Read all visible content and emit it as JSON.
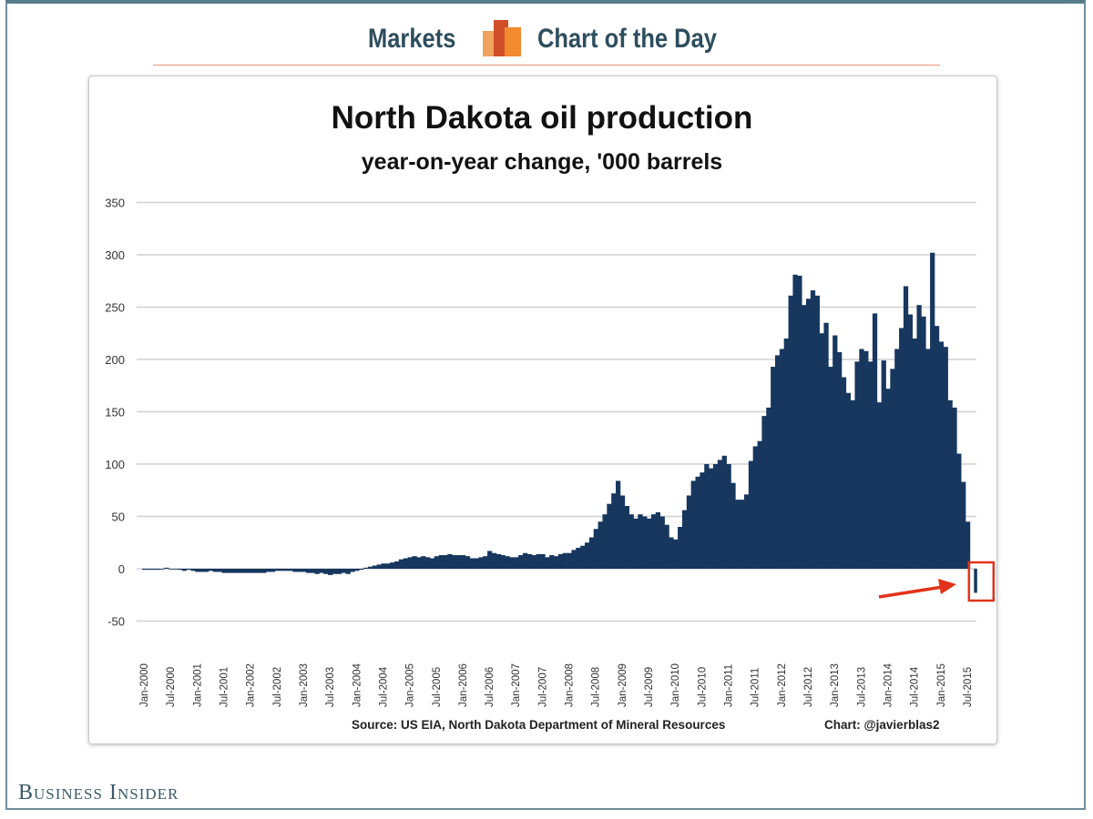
{
  "header": {
    "section": "Markets",
    "feature": "Chart of the Day",
    "logo_icon": "bar-chart-logo-icon"
  },
  "brand": "Business Insider",
  "colors": {
    "bar": "#17375e",
    "highlight": "#e2321a",
    "header_text": "#2e4e5e"
  },
  "chart_data": {
    "type": "bar",
    "title": "North Dakota oil production",
    "subtitle": "year-on-year change, '000 barrels",
    "xlabel": "",
    "ylabel": "",
    "ylim": [
      -50,
      350
    ],
    "yticks": [
      "350",
      "300",
      "250",
      "200",
      "150",
      "100",
      "50",
      "0",
      "-50"
    ],
    "ytick_values": [
      350,
      300,
      250,
      200,
      150,
      100,
      50,
      0,
      -50
    ],
    "grid": true,
    "start_month": "Jan-2000",
    "xtick_labels": [
      "Jan-2000",
      "Jul-2000",
      "Jan-2001",
      "Jul-2001",
      "Jan-2002",
      "Jul-2002",
      "Jan-2003",
      "Jul-2003",
      "Jan-2004",
      "Jul-2004",
      "Jan-2005",
      "Jul-2005",
      "Jan-2006",
      "Jul-2006",
      "Jan-2007",
      "Jul-2007",
      "Jan-2008",
      "Jul-2008",
      "Jan-2009",
      "Jul-2009",
      "Jan-2010",
      "Jul-2010",
      "Jan-2011",
      "Jul-2011",
      "Jan-2012",
      "Jul-2012",
      "Jan-2013",
      "Jul-2013",
      "Jan-2014",
      "Jul-2014",
      "Jan-2015",
      "Jul-2015"
    ],
    "values": [
      -1,
      -1,
      -1,
      -1,
      0,
      1,
      0,
      0,
      -1,
      -2,
      -1,
      -2,
      -3,
      -3,
      -3,
      -2,
      -3,
      -3,
      -4,
      -4,
      -4,
      -4,
      -4,
      -4,
      -4,
      -4,
      -4,
      -4,
      -3,
      -3,
      -2,
      -2,
      -2,
      -2,
      -3,
      -3,
      -3,
      -4,
      -4,
      -5,
      -4,
      -5,
      -6,
      -5,
      -5,
      -4,
      -5,
      -3,
      -2,
      -1,
      1,
      2,
      3,
      4,
      5,
      5,
      6,
      7,
      9,
      10,
      11,
      12,
      11,
      12,
      11,
      10,
      12,
      13,
      13,
      14,
      13,
      13,
      13,
      12,
      10,
      10,
      11,
      12,
      17,
      15,
      14,
      13,
      12,
      11,
      11,
      13,
      15,
      14,
      13,
      14,
      14,
      11,
      13,
      12,
      14,
      15,
      15,
      18,
      20,
      22,
      25,
      30,
      38,
      45,
      52,
      62,
      72,
      84,
      70,
      60,
      52,
      48,
      52,
      50,
      48,
      52,
      54,
      50,
      42,
      30,
      28,
      40,
      56,
      70,
      84,
      88,
      92,
      100,
      96,
      100,
      104,
      108,
      100,
      82,
      66,
      66,
      71,
      103,
      117,
      122,
      146,
      154,
      193,
      204,
      210,
      220,
      261,
      281,
      280,
      252,
      258,
      266,
      261,
      225,
      235,
      193,
      223,
      207,
      183,
      168,
      161,
      198,
      210,
      208,
      198,
      244,
      159,
      199,
      172,
      191,
      210,
      230,
      270,
      243,
      220,
      252,
      241,
      210,
      302,
      232,
      217,
      212,
      161,
      154,
      110,
      83,
      45,
      -23
    ],
    "annotation": "latest month highlighted (negative change)",
    "source": "Source: US EIA, North Dakota Department of Mineral Resources",
    "credit": "Chart: @javierblas2"
  }
}
